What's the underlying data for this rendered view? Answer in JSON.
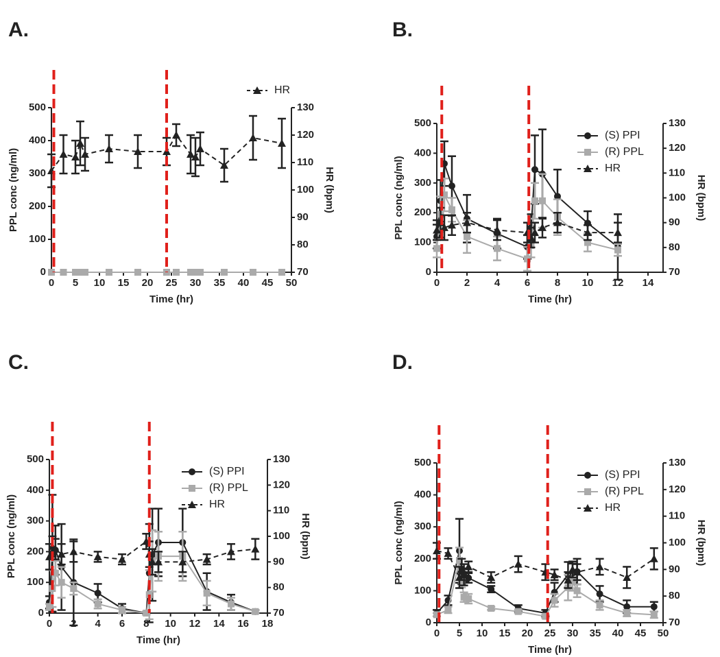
{
  "chart_data": [
    {
      "type": "line",
      "label": "A.",
      "xlabel": "Time (hr)",
      "ylabel": "PPL conc (ng/ml)",
      "y2label": "HR (bpm)",
      "xlim": [
        0,
        50
      ],
      "xticks": [
        0,
        5,
        10,
        15,
        20,
        25,
        30,
        35,
        40,
        45,
        50
      ],
      "ylim": [
        0,
        500
      ],
      "yticks": [
        0,
        100,
        200,
        300,
        400,
        500
      ],
      "y2lim": [
        70,
        130
      ],
      "y2ticks": [
        70,
        80,
        90,
        100,
        110,
        120,
        130
      ],
      "vlines": [
        0.5,
        24
      ],
      "vline_color": "#e0201b",
      "legend": "above",
      "x": [
        0,
        2.5,
        5,
        6,
        7,
        12,
        18,
        24,
        26,
        29,
        30,
        31,
        36,
        42,
        48
      ],
      "series": [
        {
          "color": "#aaaaaa",
          "marker": "square",
          "dashed": false,
          "values": [
            0,
            0,
            0,
            0,
            0,
            0,
            0,
            0,
            0,
            0,
            0,
            0,
            0,
            0,
            0
          ]
        },
        {
          "name": "HR",
          "color": "#222222",
          "marker": "triangle",
          "dashed": true,
          "axis": "y2",
          "values": [
            107,
            113,
            112,
            117,
            113,
            115,
            114,
            114,
            120,
            113,
            112,
            115,
            109,
            119,
            117
          ],
          "errors": [
            6,
            7,
            6,
            8,
            6,
            5,
            6,
            5,
            4,
            7,
            7,
            6,
            6,
            8,
            9
          ]
        }
      ]
    },
    {
      "type": "line",
      "label": "B.",
      "xlabel": "Time (hr)",
      "ylabel": "PPL conc (ng/ml)",
      "y2label": "HR (bpm)",
      "xlim": [
        0,
        15
      ],
      "xticks": [
        0,
        2,
        4,
        6,
        8,
        10,
        12,
        14
      ],
      "ylim": [
        0,
        500
      ],
      "yticks": [
        0,
        100,
        200,
        300,
        400,
        500
      ],
      "y2lim": [
        70,
        130
      ],
      "y2ticks": [
        70,
        80,
        90,
        100,
        110,
        120,
        130
      ],
      "vlines": [
        0.33,
        6.1
      ],
      "vline_color": "#e0201b",
      "legend": "upper right",
      "x": [
        0,
        0.25,
        0.5,
        1,
        2,
        4,
        6,
        6.25,
        6.5,
        7,
        8,
        10,
        12
      ],
      "series": [
        {
          "name": "(S) PPI",
          "color": "#222222",
          "marker": "circle",
          "dashed": false,
          "values": [
            120,
            240,
            365,
            290,
            180,
            130,
            85,
            150,
            345,
            330,
            255,
            165,
            85
          ],
          "errors": [
            40,
            70,
            75,
            100,
            80,
            50,
            40,
            45,
            115,
            150,
            90,
            40,
            110
          ]
        },
        {
          "name": "(R) PPL",
          "color": "#aaaaaa",
          "marker": "square",
          "dashed": false,
          "values": [
            80,
            195,
            260,
            210,
            120,
            80,
            45,
            90,
            240,
            240,
            185,
            100,
            75
          ],
          "errors": [
            30,
            60,
            55,
            40,
            55,
            40,
            40,
            40,
            60,
            90,
            60,
            30,
            20
          ]
        },
        {
          "name": "HR",
          "color": "#222222",
          "marker": "triangle",
          "dashed": true,
          "axis": "y2",
          "values": [
            87,
            90,
            88,
            89,
            90,
            87,
            86,
            84,
            86,
            88,
            90,
            86,
            86
          ],
          "errors": [
            4,
            6,
            5,
            4,
            4,
            4,
            4,
            4,
            4,
            4,
            4,
            3,
            4
          ]
        }
      ]
    },
    {
      "type": "line",
      "label": "C.",
      "xlabel": "Time (hr)",
      "ylabel": "PPL conc (ng/ml)",
      "y2label": "HR (bpm)",
      "xlim": [
        0,
        18
      ],
      "xticks": [
        0,
        2,
        4,
        6,
        8,
        10,
        12,
        14,
        16,
        18
      ],
      "ylim": [
        0,
        500
      ],
      "yticks": [
        0,
        100,
        200,
        300,
        400,
        500
      ],
      "y2lim": [
        70,
        130
      ],
      "y2ticks": [
        70,
        80,
        90,
        100,
        110,
        120,
        130
      ],
      "vlines": [
        0.25,
        8.25
      ],
      "vline_color": "#e0201b",
      "legend": "upper right",
      "x": [
        0,
        0.25,
        0.5,
        1,
        2,
        4,
        6,
        8,
        8.25,
        8.5,
        9,
        11,
        13,
        15,
        17
      ],
      "series": [
        {
          "name": "(S) PPI",
          "color": "#222222",
          "marker": "circle",
          "dashed": false,
          "values": [
            35,
            195,
            205,
            150,
            100,
            65,
            15,
            0,
            130,
            190,
            230,
            230,
            70,
            35,
            5
          ],
          "errors": [
            20,
            190,
            80,
            140,
            140,
            30,
            15,
            5,
            160,
            150,
            110,
            110,
            60,
            25,
            5
          ]
        },
        {
          "name": "(R) PPL",
          "color": "#aaaaaa",
          "marker": "square",
          "dashed": false,
          "values": [
            20,
            80,
            130,
            100,
            80,
            30,
            10,
            0,
            60,
            170,
            185,
            185,
            65,
            30,
            5
          ],
          "errors": [
            10,
            60,
            40,
            50,
            20,
            15,
            10,
            5,
            80,
            100,
            80,
            80,
            40,
            20,
            5
          ]
        },
        {
          "name": "HR",
          "color": "#222222",
          "marker": "triangle",
          "dashed": true,
          "axis": "y2",
          "values": [
            92,
            96,
            95,
            93,
            94,
            92,
            91,
            98,
            93,
            90,
            90,
            90,
            91,
            94,
            95
          ],
          "errors": [
            5,
            4,
            4,
            4,
            4,
            2,
            2,
            3,
            5,
            5,
            4,
            4,
            2,
            3,
            4
          ]
        }
      ]
    },
    {
      "type": "line",
      "label": "D.",
      "xlabel": "Time (hr)",
      "ylabel": "PPL conc (ng/ml)",
      "y2label": "HR (bpm)",
      "xlim": [
        0,
        50
      ],
      "xticks": [
        0,
        5,
        10,
        15,
        20,
        25,
        30,
        35,
        40,
        45,
        50
      ],
      "ylim": [
        0,
        500
      ],
      "yticks": [
        0,
        100,
        200,
        300,
        400,
        500
      ],
      "y2lim": [
        70,
        130
      ],
      "y2ticks": [
        70,
        80,
        90,
        100,
        110,
        120,
        130
      ],
      "vlines": [
        0.5,
        24.5
      ],
      "vline_color": "#e0201b",
      "legend": "upper right",
      "x": [
        0,
        2.5,
        5,
        5.5,
        6,
        7,
        12,
        18,
        24,
        26,
        29,
        30,
        31,
        36,
        42,
        48
      ],
      "series": [
        {
          "name": "(S) PPI",
          "color": "#222222",
          "marker": "circle",
          "dashed": false,
          "values": [
            30,
            70,
            225,
            140,
            150,
            140,
            105,
            45,
            30,
            95,
            150,
            155,
            160,
            90,
            50,
            50
          ],
          "errors": [
            10,
            15,
            100,
            20,
            20,
            15,
            10,
            10,
            10,
            30,
            40,
            30,
            40,
            25,
            20,
            15
          ]
        },
        {
          "name": "(R) PPL",
          "color": "#aaaaaa",
          "marker": "square",
          "dashed": false,
          "values": [
            25,
            40,
            195,
            130,
            80,
            75,
            45,
            35,
            20,
            70,
            110,
            130,
            100,
            55,
            30,
            25
          ],
          "errors": [
            5,
            10,
            40,
            20,
            15,
            15,
            5,
            5,
            5,
            20,
            40,
            30,
            20,
            15,
            10,
            10
          ]
        },
        {
          "name": "HR",
          "color": "#222222",
          "marker": "triangle",
          "dashed": true,
          "axis": "y2",
          "values": [
            97,
            96,
            87,
            90,
            88,
            91,
            87,
            92,
            89,
            88,
            86,
            90,
            89,
            91,
            87,
            94
          ],
          "errors": [
            3,
            2,
            4,
            4,
            4,
            2,
            2,
            3,
            3,
            2,
            3,
            3,
            3,
            3,
            4,
            4
          ]
        }
      ]
    }
  ]
}
